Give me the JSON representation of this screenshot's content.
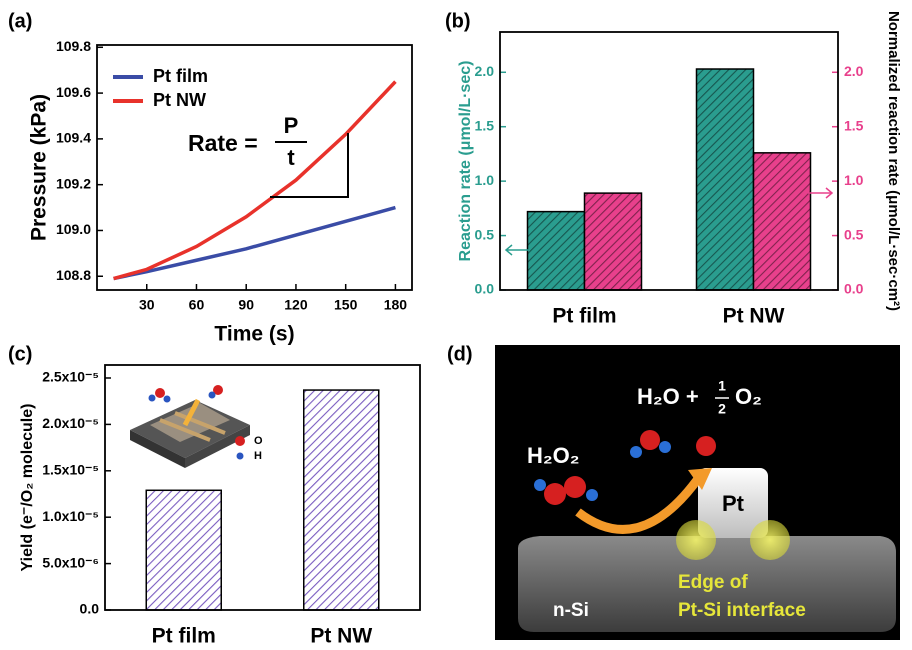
{
  "chart_data": [
    {
      "type": "line",
      "panel_label": "(a)",
      "x_label": "Time (s)",
      "y_label": "Pressure (kPa)",
      "x": [
        10,
        30,
        60,
        90,
        120,
        150,
        180
      ],
      "xlim": [
        0,
        190
      ],
      "xticks": [
        30,
        60,
        90,
        120,
        150,
        180
      ],
      "ylim": [
        108.74,
        109.81
      ],
      "yticks": [
        108.8,
        {
          "value": 109.0,
          "label": "109.0"
        },
        109.2,
        109.4,
        109.6,
        109.8
      ],
      "series": [
        {
          "name": "Pt film",
          "color": "#3a4ca6",
          "values": [
            108.79,
            108.82,
            108.87,
            108.92,
            108.98,
            109.04,
            109.1
          ]
        },
        {
          "name": "Pt NW",
          "color": "#e8322b",
          "values": [
            108.79,
            108.83,
            108.93,
            109.06,
            109.22,
            109.42,
            109.65
          ]
        }
      ],
      "legend": "upper left",
      "annotation": {
        "text": "Rate =",
        "numerator": "P",
        "denominator": "t"
      }
    },
    {
      "type": "bar",
      "panel_label": "(b)",
      "y_label": "Reaction rate (μmol/L·sec)",
      "y2_label": "Normalized reaction rate (μmol/L·sec·cm²)",
      "categories": [
        "Pt film",
        "Pt NW"
      ],
      "ylim": [
        0,
        2.37
      ],
      "yticks": [
        {
          "value": 0,
          "label": "0.0"
        },
        0.5,
        {
          "value": 1,
          "label": "1.0"
        },
        1.5,
        {
          "value": 2,
          "label": "2.0"
        }
      ],
      "y2lim": [
        0,
        2.37
      ],
      "y2ticks": [
        {
          "value": 0,
          "label": "0.0"
        },
        0.5,
        {
          "value": 1,
          "label": "1.0"
        },
        1.5,
        {
          "value": 2,
          "label": "2.0"
        }
      ],
      "series": [
        {
          "color": "#2a9d8f",
          "values": [
            0.72,
            2.03
          ]
        },
        {
          "color": "#e8408c",
          "values": [
            0.89,
            1.26
          ],
          "axis": "y2"
        }
      ]
    },
    {
      "type": "bar",
      "panel_label": "(c)",
      "y_label": "Yield (e⁻/O₂ molecule)",
      "categories": [
        "Pt film",
        "Pt NW"
      ],
      "ylim": [
        0,
        2.64e-05
      ],
      "yticks": [
        {
          "value": 0,
          "label": "0.0"
        },
        {
          "value": 5e-06,
          "label": "5.0x10⁻⁶"
        },
        {
          "value": 1e-05,
          "label": "1.0x10⁻⁵"
        },
        {
          "value": 1.5e-05,
          "label": "1.5x10⁻⁵"
        },
        {
          "value": 2e-05,
          "label": "2.0x10⁻⁵"
        },
        {
          "value": 2.5e-05,
          "label": "2.5x10⁻⁵"
        }
      ],
      "series": [
        {
          "color": "#7a5cc0",
          "values": [
            1.29e-05,
            2.37e-05
          ]
        }
      ],
      "inset_labels": [
        "O",
        "H"
      ]
    }
  ],
  "panel_d": {
    "panel_label": "(d)",
    "product_left": "H₂O +",
    "fraction_num": "1",
    "fraction_den": "2",
    "product_right": "O₂",
    "reactant": "H₂O₂",
    "catalyst": "Pt",
    "edge_line1": "Edge of",
    "edge_line2": "Pt-Si interface",
    "substrate": "n-Si"
  }
}
